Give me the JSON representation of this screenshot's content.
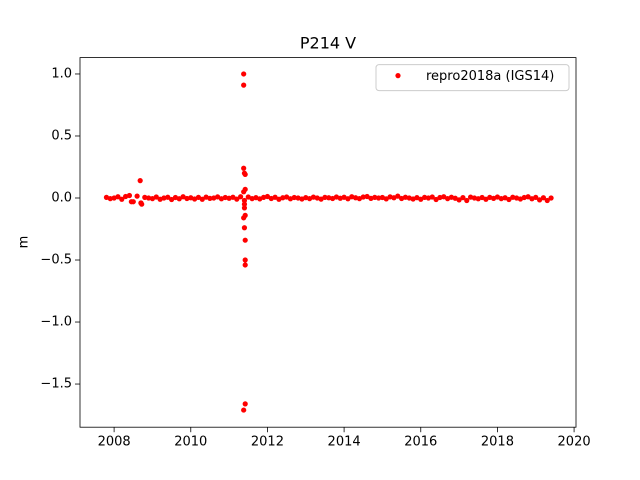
{
  "chart_data": {
    "type": "scatter",
    "title": "P214 V",
    "ylabel": "m",
    "legend": "upper right",
    "series": [
      {
        "name": "repro2018a (IGS14)",
        "color": "#ff0000",
        "x": [
          2007.8,
          2007.9,
          2008.0,
          2008.1,
          2008.2,
          2008.3,
          2008.4,
          2008.5,
          2008.6,
          2008.7,
          2008.8,
          2008.9,
          2009.0,
          2009.1,
          2009.2,
          2009.3,
          2009.4,
          2009.5,
          2009.6,
          2009.7,
          2009.8,
          2009.9,
          2010.0,
          2010.1,
          2010.2,
          2010.3,
          2010.4,
          2010.5,
          2010.6,
          2010.7,
          2010.8,
          2010.9,
          2011.0,
          2011.1,
          2011.2,
          2011.3,
          2011.4,
          2011.5,
          2011.6,
          2011.7,
          2011.8,
          2011.9,
          2012.0,
          2012.1,
          2012.2,
          2012.3,
          2012.4,
          2012.5,
          2012.6,
          2012.7,
          2012.8,
          2012.9,
          2013.0,
          2013.1,
          2013.2,
          2013.3,
          2013.4,
          2013.5,
          2013.6,
          2013.7,
          2013.8,
          2013.9,
          2014.0,
          2014.1,
          2014.2,
          2014.3,
          2014.4,
          2014.5,
          2014.6,
          2014.7,
          2014.8,
          2014.9,
          2015.0,
          2015.1,
          2015.2,
          2015.3,
          2015.4,
          2015.5,
          2015.6,
          2015.7,
          2015.8,
          2015.9,
          2016.0,
          2016.1,
          2016.2,
          2016.3,
          2016.4,
          2016.5,
          2016.6,
          2016.7,
          2016.8,
          2016.9,
          2017.0,
          2017.1,
          2017.2,
          2017.3,
          2017.4,
          2017.5,
          2017.6,
          2017.7,
          2017.8,
          2017.9,
          2018.0,
          2018.1,
          2018.2,
          2018.3,
          2018.4,
          2018.5,
          2018.6,
          2018.7,
          2018.8,
          2018.9,
          2019.0,
          2019.1,
          2019.2,
          2019.3,
          2019.4,
          2008.45,
          2008.68,
          2008.72,
          2008.7,
          2011.38,
          2011.38,
          2011.38,
          2011.4,
          2011.42,
          2011.42,
          2011.38,
          2011.4,
          2011.42,
          2011.38,
          2011.4,
          2011.42,
          2011.42,
          2011.42,
          2011.42,
          2011.38,
          2011.4
        ],
        "values": [
          0.005,
          -0.005,
          0.0,
          0.01,
          -0.01,
          0.012,
          0.02,
          -0.03,
          0.015,
          -0.04,
          0.005,
          0.0,
          -0.005,
          0.008,
          -0.01,
          0.0,
          0.006,
          -0.012,
          0.004,
          -0.006,
          0.01,
          -0.004,
          0.002,
          -0.008,
          0.005,
          -0.01,
          0.007,
          -0.003,
          0.0,
          0.009,
          -0.006,
          0.004,
          -0.002,
          0.006,
          -0.009,
          0.01,
          -0.02,
          0.008,
          -0.005,
          0.003,
          -0.007,
          0.005,
          0.012,
          -0.004,
          0.006,
          -0.01,
          0.002,
          0.008,
          -0.006,
          0.004,
          0.0,
          -0.008,
          0.003,
          -0.005,
          0.007,
          0.0,
          -0.009,
          0.005,
          0.002,
          -0.004,
          0.008,
          -0.002,
          0.006,
          -0.006,
          0.01,
          0.002,
          -0.005,
          0.008,
          0.012,
          -0.003,
          0.005,
          0.0,
          0.004,
          -0.007,
          0.009,
          0.002,
          0.015,
          -0.004,
          0.006,
          0.0,
          -0.008,
          0.003,
          -0.01,
          0.005,
          0.0,
          0.008,
          -0.012,
          0.004,
          0.01,
          -0.005,
          0.006,
          -0.002,
          -0.015,
          0.003,
          -0.02,
          0.007,
          0.0,
          -0.006,
          0.004,
          -0.01,
          0.005,
          -0.003,
          0.008,
          -0.005,
          0.002,
          -0.012,
          0.006,
          0.0,
          -0.008,
          0.004,
          0.01,
          -0.006,
          0.005,
          -0.015,
          0.002,
          -0.02,
          0.0,
          -0.03,
          0.14,
          -0.05,
          -0.04,
          1.0,
          0.91,
          0.24,
          0.2,
          0.19,
          0.07,
          0.05,
          -0.05,
          -0.14,
          -0.16,
          -0.24,
          -0.34,
          -0.5,
          -0.54,
          -1.66,
          -1.71,
          -0.08
        ]
      }
    ],
    "xlim": [
      2007.11,
      2020.05
    ],
    "ylim": [
      -1.848,
      1.132
    ],
    "xticks": [
      2008,
      2010,
      2012,
      2014,
      2016,
      2018,
      2020
    ],
    "yticks": [
      {
        "value": -1.5,
        "label": "−1.5"
      },
      {
        "value": -1.0,
        "label": "−1.0"
      },
      {
        "value": -0.5,
        "label": "−0.5"
      },
      {
        "value": 0.0,
        "label": "0.0"
      },
      {
        "value": 0.5,
        "label": "0.5"
      },
      {
        "value": 1.0,
        "label": "1.0"
      }
    ]
  }
}
